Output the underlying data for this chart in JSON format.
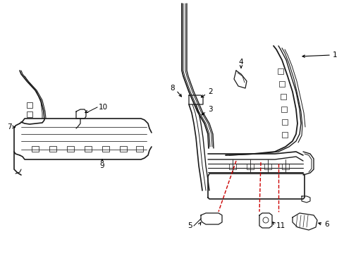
{
  "bg_color": "#ffffff",
  "line_color": "#1a1a1a",
  "red_color": "#cc0000",
  "figsize": [
    4.89,
    3.6
  ],
  "dpi": 100,
  "font_size": 7.5
}
